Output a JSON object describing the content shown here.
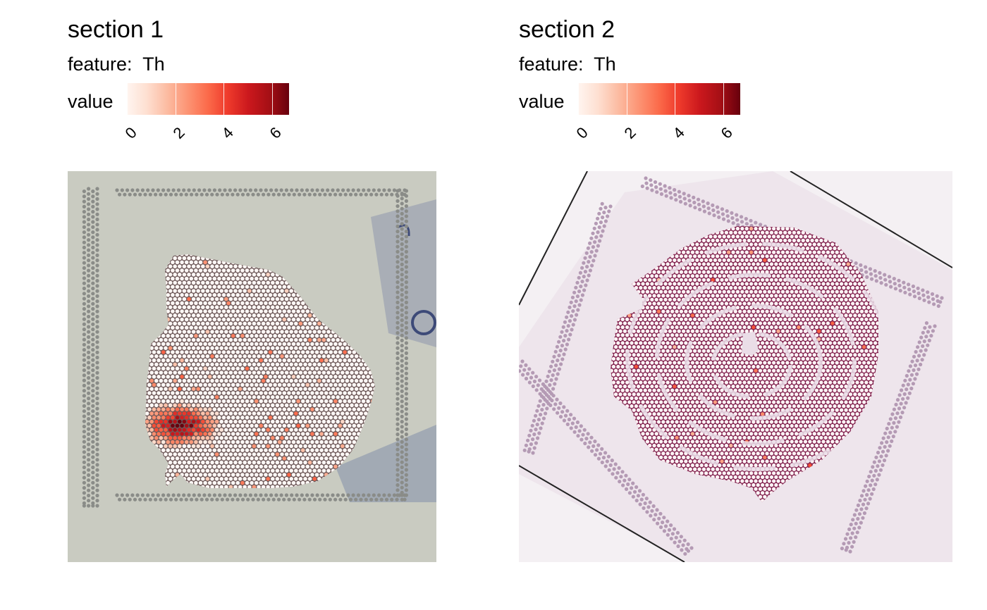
{
  "chart_data": [
    {
      "type": "scatter",
      "title": "section 1",
      "subtitle": "feature:  Th",
      "legend": {
        "title": "value",
        "placement": "top",
        "colormap": [
          "#fff5f0",
          "#fee0d2",
          "#fcbba1",
          "#fc9272",
          "#fb6a4a",
          "#ef3b2c",
          "#cb181d",
          "#a50f15",
          "#67000d"
        ],
        "range": [
          0,
          6.7
        ],
        "ticks": [
          "0",
          "2",
          "4",
          "6"
        ]
      },
      "background_color": "#c8cabf",
      "fiducial_color": "#8a8c88",
      "tissue_fold_color": "#4b5b88"
    },
    {
      "type": "scatter",
      "title": "section 2",
      "subtitle": "feature:  Th",
      "legend": {
        "title": "value",
        "placement": "top",
        "colormap": [
          "#fff5f0",
          "#fee0d2",
          "#fcbba1",
          "#fc9272",
          "#fb6a4a",
          "#ef3b2c",
          "#cb181d",
          "#a50f15",
          "#67000d"
        ],
        "range": [
          0,
          6.7
        ],
        "ticks": [
          "0",
          "2",
          "4",
          "6"
        ]
      },
      "background_color": "#f3eef2",
      "fiducial_color": "#b49ab4",
      "tissue_color": "#8e2a5a"
    }
  ]
}
